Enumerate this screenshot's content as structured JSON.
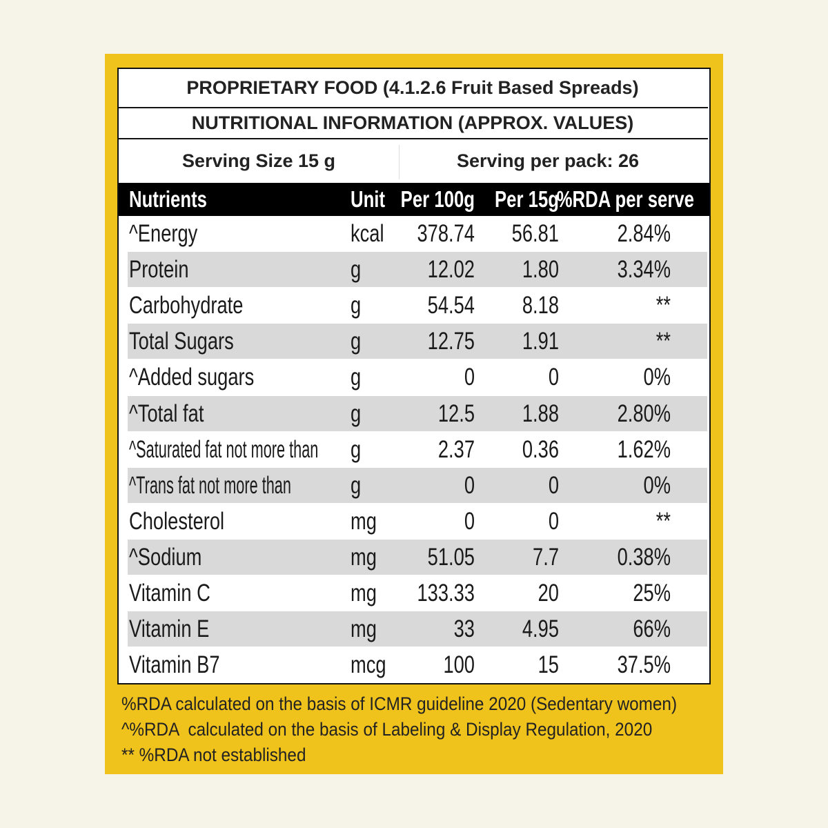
{
  "header": {
    "title": "PROPRIETARY FOOD (4.1.2.6 Fruit Based Spreads)",
    "subtitle": "NUTRITIONAL INFORMATION (APPROX. VALUES)",
    "serving_size": "Serving Size 15 g",
    "servings_per_pack": "Serving per pack: 26"
  },
  "table": {
    "columns": [
      "Nutrients",
      "Unit",
      "Per 100g",
      "Per 15g",
      "%RDA per serve"
    ],
    "rows": [
      [
        "^Energy",
        "kcal",
        "378.74",
        "56.81",
        "2.84%"
      ],
      [
        "Protein",
        "g",
        "12.02",
        "1.80",
        "3.34%"
      ],
      [
        "Carbohydrate",
        "g",
        "54.54",
        "8.18",
        "**"
      ],
      [
        "Total Sugars",
        "g",
        "12.75",
        "1.91",
        "**"
      ],
      [
        "^Added sugars",
        "g",
        "0",
        "0",
        "0%"
      ],
      [
        "^Total fat",
        "g",
        "12.5",
        "1.88",
        "2.80%"
      ],
      [
        "^Saturated fat not more than",
        "g",
        "2.37",
        "0.36",
        "1.62%"
      ],
      [
        "^Trans fat not more than",
        "g",
        "0",
        "0",
        "0%"
      ],
      [
        "Cholesterol",
        "mg",
        "0",
        "0",
        "**"
      ],
      [
        "^Sodium",
        "mg",
        "51.05",
        "7.7",
        "0.38%"
      ],
      [
        "Vitamin C",
        "mg",
        "133.33",
        "20",
        "25%"
      ],
      [
        "Vitamin E",
        "mg",
        "33",
        "4.95",
        "66%"
      ],
      [
        "Vitamin B7",
        "mcg",
        "100",
        "15",
        "37.5%"
      ]
    ]
  },
  "footnotes": [
    "%RDA calculated on the basis of ICMR guideline 2020 (Sedentary women)",
    "^%RDA  calculated on the basis of Labeling & Display Regulation, 2020",
    "** %RDA not established"
  ]
}
